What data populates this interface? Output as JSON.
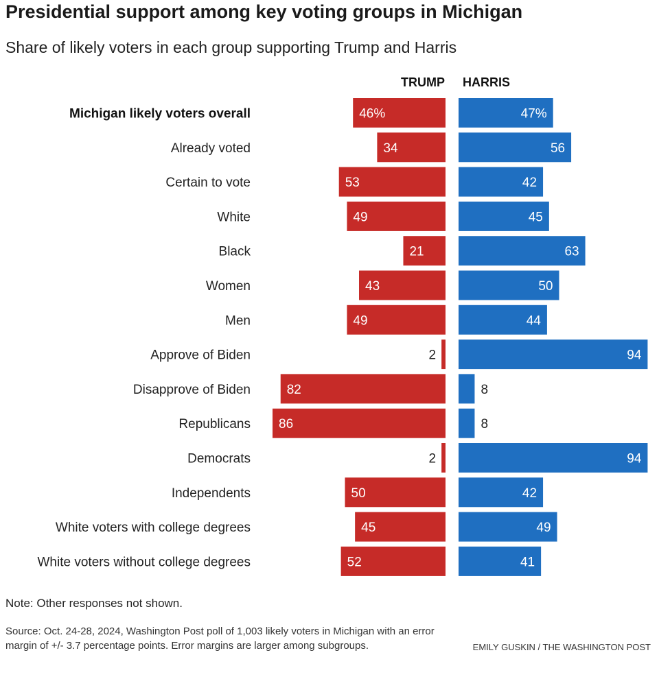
{
  "title": "Presidential support among key voting groups in Michigan",
  "subtitle": "Share of likely voters in each group supporting Trump and Harris",
  "note": "Note: Other responses not shown.",
  "source": "Source: Oct. 24-28, 2024, Washington Post poll of 1,003 likely voters in Michigan with an error margin of +/- 3.7 percentage points. Error margins are larger among subgroups.",
  "credit": "EMILY GUSKIN / THE WASHINGTON POST",
  "colors": {
    "trump": "#c62b28",
    "harris": "#1f6fc1"
  },
  "chart_data": {
    "type": "bar",
    "orientation": "horizontal-diverging",
    "categories": [
      "Michigan likely voters overall",
      "Already voted",
      "Certain to vote",
      "White",
      "Black",
      "Women",
      "Men",
      "Approve of Biden",
      "Disapprove of Biden",
      "Republicans",
      "Democrats",
      "Independents",
      "White voters with college degrees",
      "White voters without college degrees"
    ],
    "series": [
      {
        "name": "TRUMP",
        "values": [
          46,
          34,
          53,
          49,
          21,
          43,
          49,
          2,
          82,
          86,
          2,
          50,
          45,
          52
        ]
      },
      {
        "name": "HARRIS",
        "values": [
          47,
          56,
          42,
          45,
          63,
          50,
          44,
          94,
          8,
          8,
          94,
          42,
          49,
          41
        ]
      }
    ],
    "value_labels": {
      "TRUMP": [
        "46%",
        "34",
        "53",
        "49",
        "21",
        "43",
        "49",
        "2",
        "82",
        "86",
        "2",
        "50",
        "45",
        "52"
      ],
      "HARRIS": [
        "47%",
        "56",
        "42",
        "45",
        "63",
        "50",
        "44",
        "94",
        "8",
        "8",
        "94",
        "42",
        "49",
        "41"
      ]
    },
    "xlim": [
      0,
      100
    ]
  }
}
